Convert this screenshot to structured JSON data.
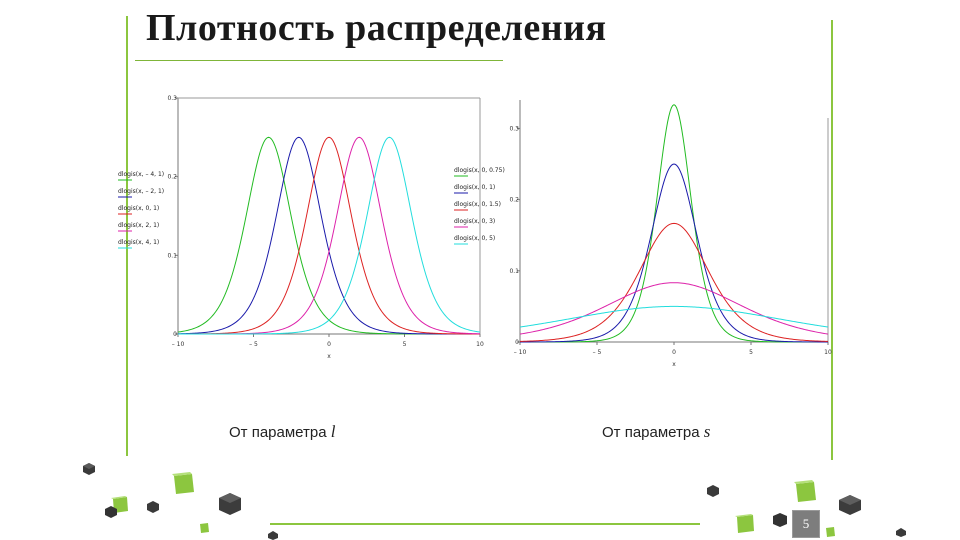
{
  "slide": {
    "title": "Плотность распределения",
    "page_number": "5",
    "accent_color": "#8cc63f"
  },
  "captions": {
    "left_prefix": "От параметра ",
    "left_param": "l",
    "right_prefix": "От параметра ",
    "right_param": "s"
  },
  "chart_data": [
    {
      "type": "line",
      "name": "От параметра l",
      "xlim": [
        -10,
        10
      ],
      "ylim": [
        0,
        0.3
      ],
      "x_ticks": [
        {
          "value": -10,
          "label": "– 10"
        },
        {
          "value": -5,
          "label": "– 5"
        },
        {
          "value": 0,
          "label": "0"
        },
        {
          "value": 5,
          "label": "5"
        },
        {
          "value": 10,
          "label": "10"
        }
      ],
      "y_ticks": [
        {
          "value": 0,
          "label": "0"
        },
        {
          "value": 0.1,
          "label": "0.1"
        },
        {
          "value": 0.2,
          "label": "0.2"
        },
        {
          "value": 0.3,
          "label": "0.3"
        }
      ],
      "xlabel": "x",
      "grid": false,
      "legend_position": "left",
      "series": [
        {
          "name": "dlogis(x, – 4, 1)",
          "color": "#22bb22",
          "location": -4,
          "scale": 1
        },
        {
          "name": "dlogis(x, – 2, 1)",
          "color": "#1a1aaa",
          "location": -2,
          "scale": 1
        },
        {
          "name": "dlogis(x, 0, 1)",
          "color": "#dd2222",
          "location": 0,
          "scale": 1
        },
        {
          "name": "dlogis(x, 2, 1)",
          "color": "#dd22aa",
          "location": 2,
          "scale": 1
        },
        {
          "name": "dlogis(x, 4, 1)",
          "color": "#22dddd",
          "location": 4,
          "scale": 1
        }
      ]
    },
    {
      "type": "line",
      "name": "От параметра s",
      "xlim": [
        -10,
        10
      ],
      "ylim": [
        0,
        0.34
      ],
      "x_ticks": [
        {
          "value": -10,
          "label": "– 10"
        },
        {
          "value": -5,
          "label": "– 5"
        },
        {
          "value": 0,
          "label": "0"
        },
        {
          "value": 5,
          "label": "5"
        },
        {
          "value": 10,
          "label": "10"
        }
      ],
      "y_ticks": [
        {
          "value": 0,
          "label": "0"
        },
        {
          "value": 0.1,
          "label": "0.1"
        },
        {
          "value": 0.2,
          "label": "0.2"
        },
        {
          "value": 0.3,
          "label": "0.3"
        }
      ],
      "xlabel": "x",
      "grid": false,
      "legend_position": "left",
      "series": [
        {
          "name": "dlogis(x, 0, 0.75)",
          "color": "#22bb22",
          "location": 0,
          "scale": 0.75
        },
        {
          "name": "dlogis(x, 0, 1)",
          "color": "#1a1aaa",
          "location": 0,
          "scale": 1
        },
        {
          "name": "dlogis(x, 0, 1.5)",
          "color": "#dd2222",
          "location": 0,
          "scale": 1.5
        },
        {
          "name": "dlogis(x, 0, 3)",
          "color": "#dd22aa",
          "location": 0,
          "scale": 3
        },
        {
          "name": "dlogis(x, 0, 5)",
          "color": "#22dddd",
          "location": 0,
          "scale": 5
        }
      ]
    }
  ]
}
